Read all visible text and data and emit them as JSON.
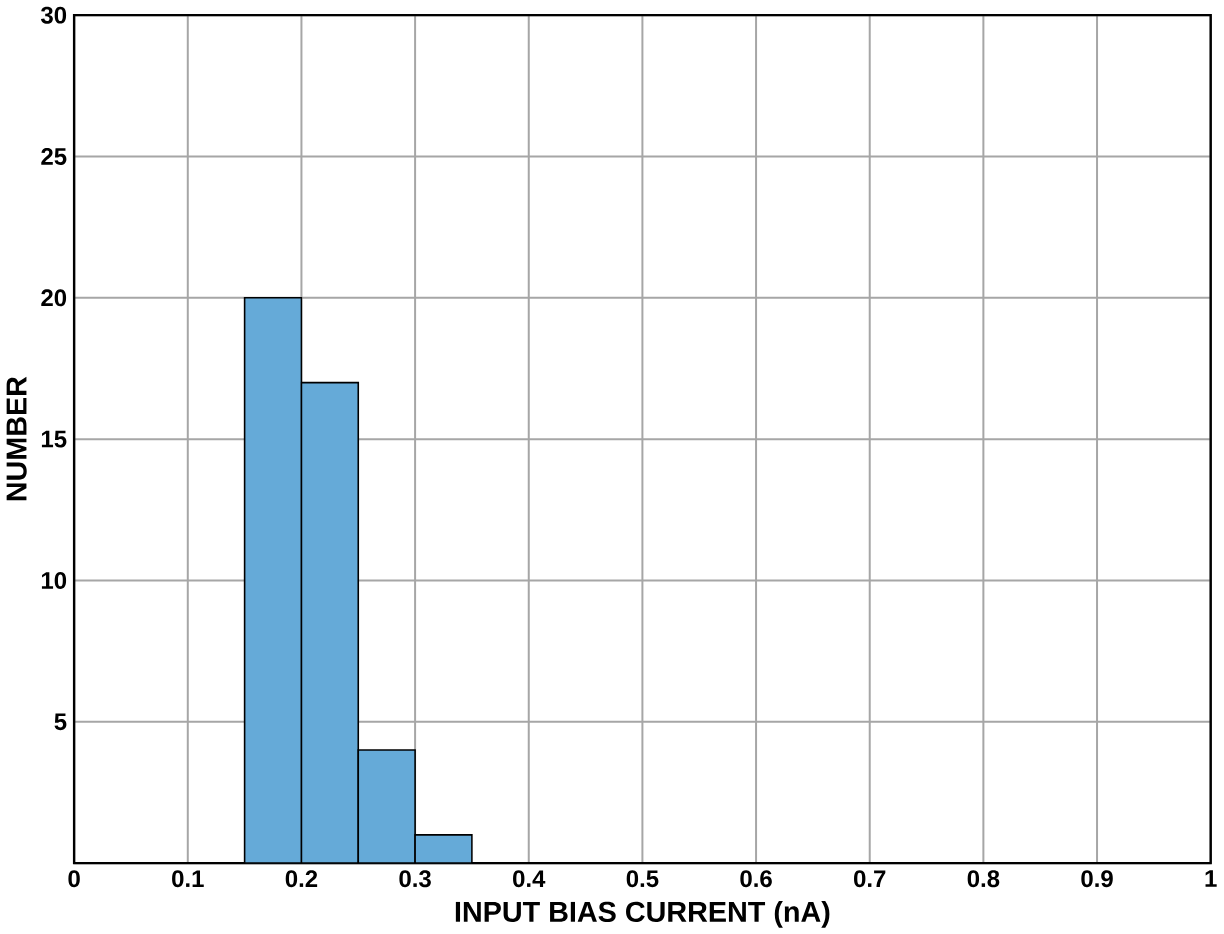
{
  "chart_data": {
    "type": "histogram",
    "xlabel": "INPUT BIAS CURRENT (nA)",
    "ylabel": "NUMBER",
    "bins": [
      0.15,
      0.2,
      0.25,
      0.3,
      0.35
    ],
    "values": [
      20,
      17,
      4,
      1
    ],
    "color": "#65aad8",
    "xlim": [
      0,
      1
    ],
    "xticks": [
      0,
      0.1,
      0.2,
      0.3,
      0.4,
      0.5,
      0.6,
      0.7,
      0.8,
      0.9,
      1
    ],
    "ylim": [
      0,
      30
    ],
    "yticks": [
      {
        "value": 0,
        "label": null
      },
      5,
      10,
      15,
      20,
      25,
      30
    ],
    "grid": true
  }
}
